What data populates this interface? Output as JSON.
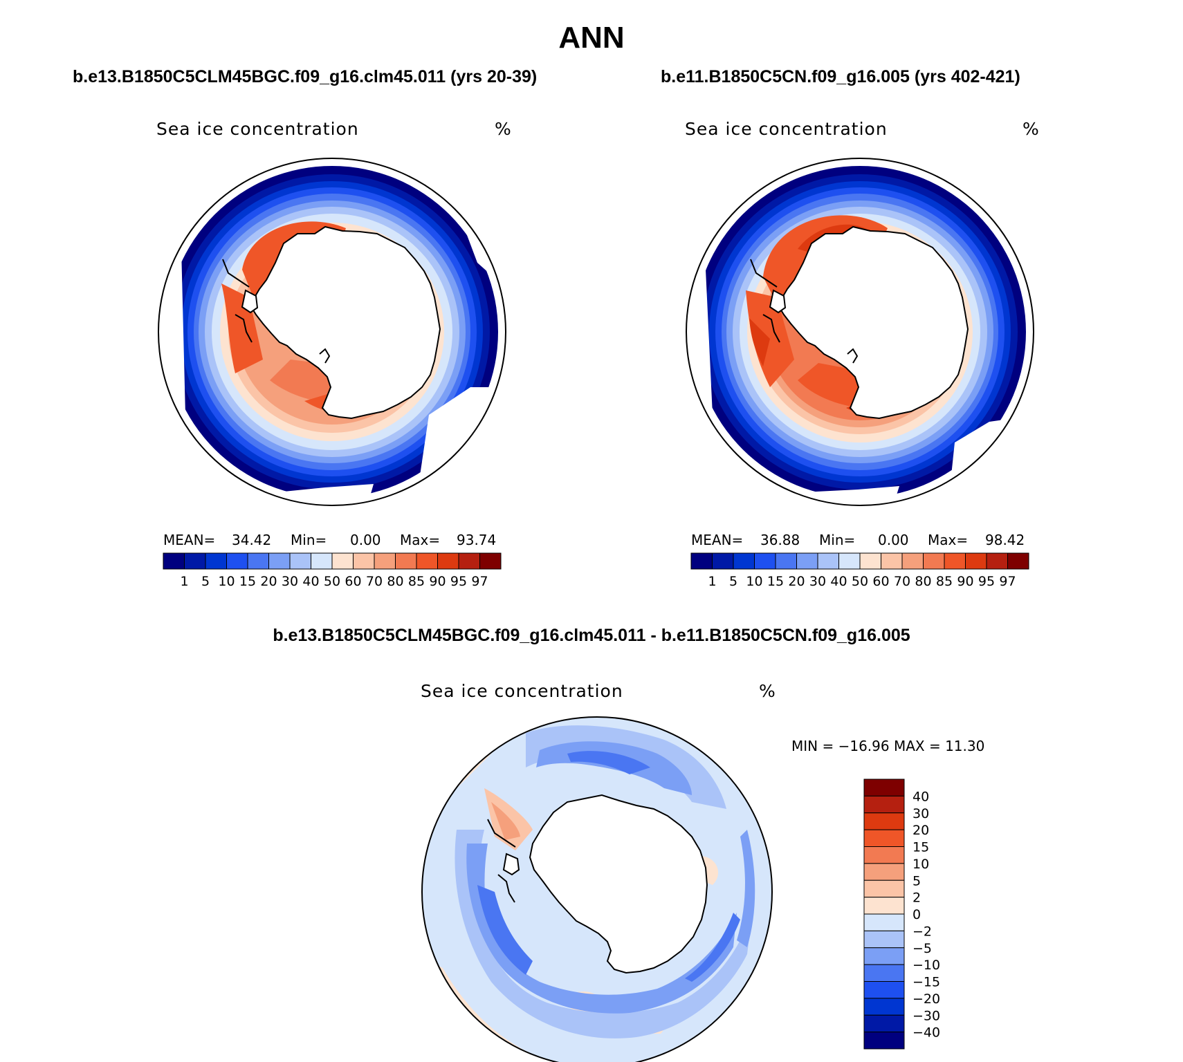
{
  "figure": {
    "title": "ANN",
    "difference_title": "b.e13.B1850C5CLM45BGC.f09_g16.clm45.011 - b.e11.B1850C5CN.f09_g16.005"
  },
  "colors": {
    "abs_scale": [
      "#00007f",
      "#0019a6",
      "#0036d1",
      "#1e50f0",
      "#4a76f2",
      "#7b9ff5",
      "#aac3f8",
      "#d6e6fb",
      "#fde3d0",
      "#fbc4a7",
      "#f5a07c",
      "#f27a52",
      "#ef5628",
      "#dd3a10",
      "#b52010",
      "#7e0000"
    ],
    "diff_scale": [
      "#00007f",
      "#0019a6",
      "#0036d1",
      "#1e50f0",
      "#4a76f2",
      "#7b9ff5",
      "#aac3f8",
      "#d6e6fb",
      "#fde3d0",
      "#fbc4a7",
      "#f5a07c",
      "#f27a52",
      "#ef5628",
      "#dd3a10",
      "#b52010",
      "#7e0000"
    ],
    "land": "#ffffff",
    "coast": "#000000"
  },
  "chart_data": [
    {
      "type": "heatmap",
      "title": "b.e13.B1850C5CLM45BGC.f09_g16.clm45.011 (yrs 20-39)",
      "field_label": "Sea ice concentration",
      "units": "%",
      "projection": "south-polar-stereographic",
      "stats": {
        "mean_label": "MEAN=",
        "mean": "34.42",
        "min_label": "Min=",
        "min": "0.00",
        "max_label": "Max=",
        "max": "93.74"
      },
      "levels": [
        "1",
        "5",
        "10",
        "15",
        "20",
        "30",
        "40",
        "50",
        "60",
        "70",
        "80",
        "85",
        "90",
        "95",
        "97"
      ]
    },
    {
      "type": "heatmap",
      "title": "b.e11.B1850C5CN.f09_g16.005 (yrs 402-421)",
      "field_label": "Sea ice concentration",
      "units": "%",
      "projection": "south-polar-stereographic",
      "stats": {
        "mean_label": "MEAN=",
        "mean": "36.88",
        "min_label": "Min=",
        "min": "0.00",
        "max_label": "Max=",
        "max": "98.42"
      },
      "levels": [
        "1",
        "5",
        "10",
        "15",
        "20",
        "30",
        "40",
        "50",
        "60",
        "70",
        "80",
        "85",
        "90",
        "95",
        "97"
      ]
    },
    {
      "type": "heatmap",
      "title": "b.e13.B1850C5CLM45BGC.f09_g16.clm45.011 - b.e11.B1850C5CN.f09_g16.005",
      "field_label": "Sea ice concentration",
      "units": "%",
      "projection": "south-polar-stereographic",
      "stats": {
        "text": "MIN = −16.96  MAX =   11.30",
        "min": "-16.96",
        "max": "11.30"
      },
      "levels": [
        "40",
        "30",
        "20",
        "15",
        "10",
        "5",
        "2",
        "0",
        "−2",
        "−5",
        "−10",
        "−15",
        "−20",
        "−30",
        "−40"
      ]
    }
  ]
}
